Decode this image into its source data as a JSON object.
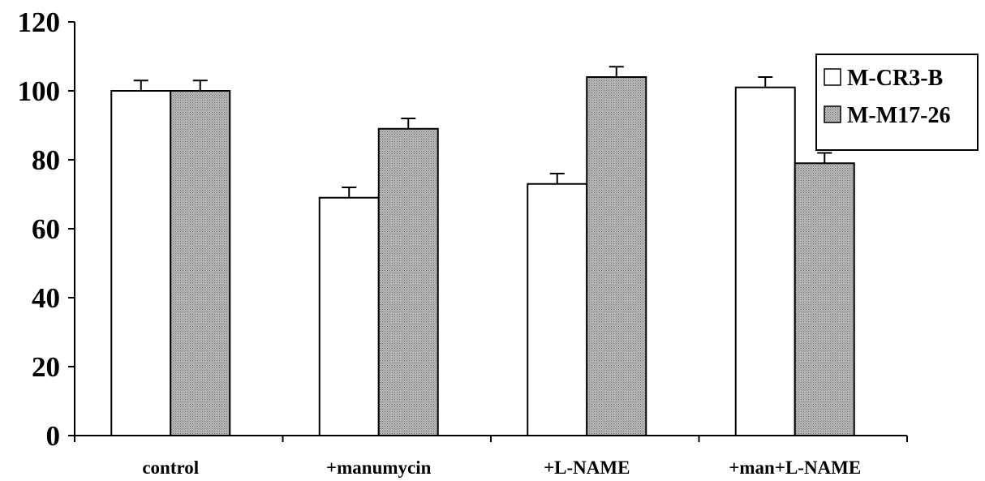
{
  "chart_data": {
    "type": "bar",
    "categories": [
      "control",
      "+manumycin",
      "+L-NAME",
      "+man+L-NAME"
    ],
    "series": [
      {
        "name": "M-CR3-B",
        "values": [
          100,
          69,
          73,
          101
        ],
        "errors": [
          3,
          3,
          3,
          3
        ],
        "color": "#ffffff"
      },
      {
        "name": "M-M17-26",
        "values": [
          100,
          89,
          104,
          79
        ],
        "errors": [
          3,
          3,
          3,
          3
        ],
        "color": "#b8b8b8"
      }
    ],
    "title": "",
    "xlabel": "",
    "ylabel": "",
    "ylim": [
      0,
      120
    ],
    "yticks": [
      0,
      20,
      40,
      60,
      80,
      100,
      120
    ],
    "grid": false,
    "legend_position": "top-right"
  }
}
